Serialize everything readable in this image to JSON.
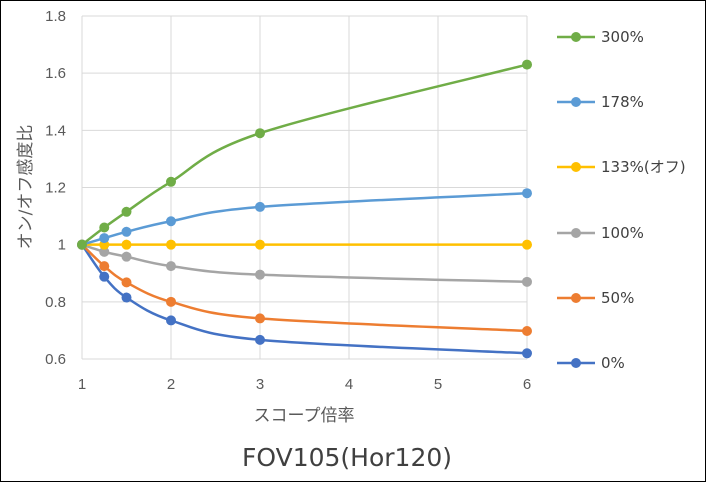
{
  "chart_data": {
    "type": "line",
    "title": "FOV105(Hor120)",
    "xlabel": "スコープ倍率",
    "ylabel": "オン/オフ感度比",
    "xlim": [
      1,
      6
    ],
    "ylim": [
      0.6,
      1.8
    ],
    "x_ticks": [
      1,
      2,
      3,
      4,
      5,
      6
    ],
    "y_ticks": [
      "0.6",
      "0.8",
      "1",
      "1.2",
      "1.4",
      "1.6",
      "1.8"
    ],
    "grid": true,
    "smooth": true,
    "legend_position": "right",
    "series": [
      {
        "name": "300%",
        "color": "#70AD47",
        "x": [
          1,
          1.25,
          1.5,
          2,
          3,
          6
        ],
        "values": [
          1.0,
          1.06,
          1.115,
          1.22,
          1.39,
          1.63
        ]
      },
      {
        "name": "178%",
        "color": "#5B9BD5",
        "x": [
          1,
          1.25,
          1.5,
          2,
          3,
          6
        ],
        "values": [
          1.0,
          1.023,
          1.045,
          1.082,
          1.132,
          1.18
        ]
      },
      {
        "name": "133%(オフ)",
        "color": "#FFC000",
        "x": [
          1,
          1.25,
          1.5,
          2,
          3,
          6
        ],
        "values": [
          1.0,
          1.0,
          1.0,
          1.0,
          1.0,
          1.0
        ]
      },
      {
        "name": "100%",
        "color": "#A5A5A5",
        "x": [
          1,
          1.25,
          1.5,
          2,
          3,
          6
        ],
        "values": [
          1.0,
          0.975,
          0.958,
          0.925,
          0.895,
          0.87
        ]
      },
      {
        "name": "50%",
        "color": "#ED7D31",
        "x": [
          1,
          1.25,
          1.5,
          2,
          3,
          6
        ],
        "values": [
          1.0,
          0.925,
          0.868,
          0.8,
          0.742,
          0.698
        ]
      },
      {
        "name": "0%",
        "color": "#4472C4",
        "x": [
          1,
          1.25,
          1.5,
          2,
          3,
          6
        ],
        "values": [
          1.0,
          0.888,
          0.815,
          0.735,
          0.667,
          0.62
        ]
      }
    ]
  }
}
